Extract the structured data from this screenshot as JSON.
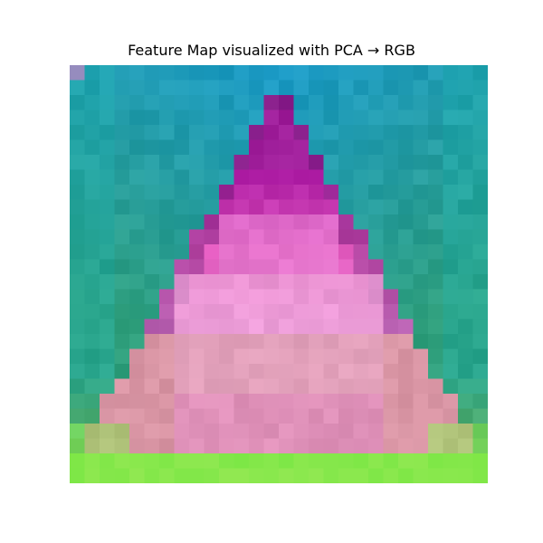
{
  "title": "Feature Map visualized with PCA → RGB",
  "image": {
    "description_colors": {
      "top": "#1b9ac6",
      "edges": "#2f9f7c",
      "spire": "#b01fa6",
      "pink_body": "#e66ed8",
      "light_center": "#f0a6dc",
      "bottom": "#86f04f"
    }
  }
}
